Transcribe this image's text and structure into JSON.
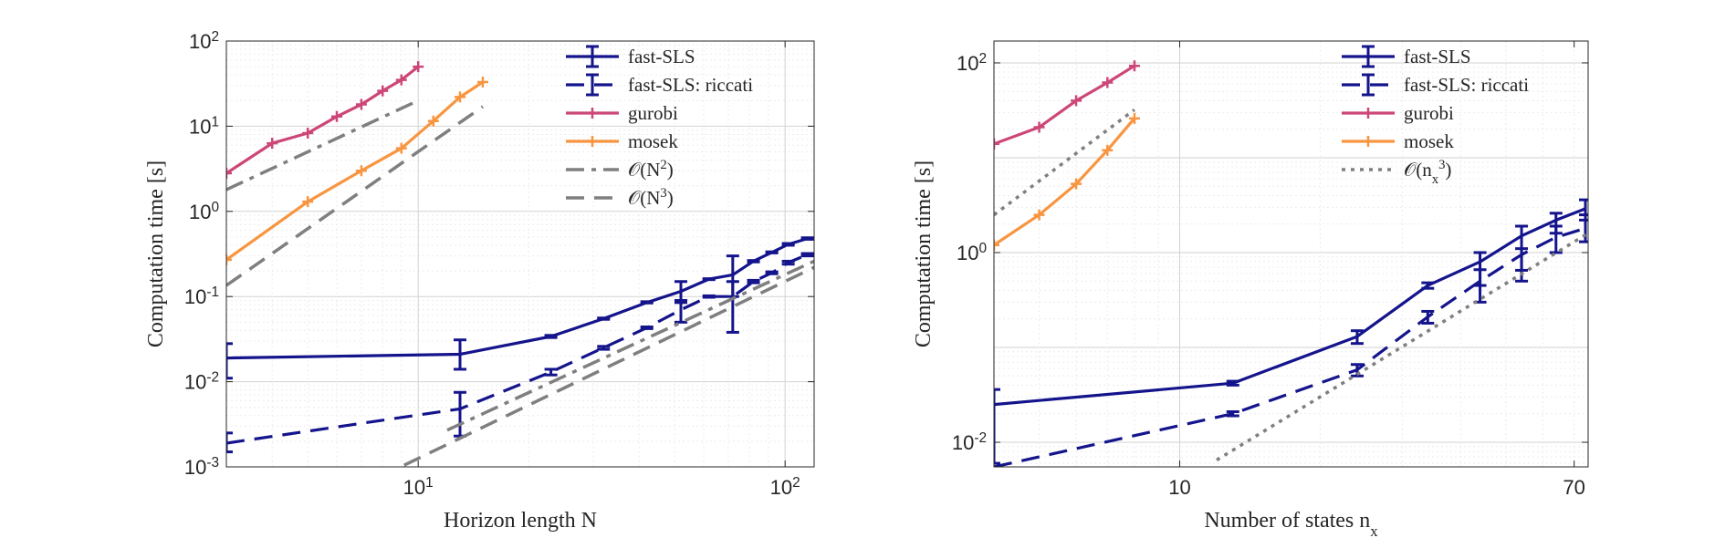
{
  "chart_data": [
    {
      "type": "line",
      "xlabel": "Horizon length N",
      "ylabel": "Computation time [s]",
      "xscale": "log",
      "yscale": "log",
      "xlim": [
        3,
        120
      ],
      "ylim": [
        0.001,
        100
      ],
      "grid": true,
      "legend_position": "top-right",
      "x_ticks": [
        {
          "value": 10,
          "base": "10",
          "exp": "1"
        },
        {
          "value": 100,
          "base": "10",
          "exp": "2"
        }
      ],
      "y_ticks": [
        {
          "value": 0.001,
          "base": "10",
          "exp": "-3"
        },
        {
          "value": 0.01,
          "base": "10",
          "exp": "-2"
        },
        {
          "value": 0.1,
          "base": "10",
          "exp": "-1"
        },
        {
          "value": 1,
          "base": "10",
          "exp": "0"
        },
        {
          "value": 10,
          "base": "10",
          "exp": "1"
        },
        {
          "value": 100,
          "base": "10",
          "exp": "2"
        }
      ],
      "series": [
        {
          "name": "fast-SLS",
          "color": "#14148c",
          "style": "solid",
          "marker": "errorbar",
          "x": [
            3,
            13,
            23,
            32,
            42,
            52,
            62,
            72,
            82,
            92,
            102,
            115
          ],
          "y": [
            0.019,
            0.021,
            0.034,
            0.055,
            0.085,
            0.115,
            0.16,
            0.18,
            0.26,
            0.33,
            0.41,
            0.48
          ],
          "err_low": [
            0.011,
            0.014,
            0.033,
            0.054,
            0.084,
            0.085,
            0.158,
            0.1,
            0.255,
            0.325,
            0.4,
            0.47
          ],
          "err_high": [
            0.028,
            0.031,
            0.035,
            0.056,
            0.087,
            0.15,
            0.162,
            0.3,
            0.265,
            0.335,
            0.42,
            0.49
          ]
        },
        {
          "name": "fast-SLS: riccati",
          "color": "#14148c",
          "style": "dashed",
          "marker": "errorbar",
          "x": [
            3,
            13,
            23,
            32,
            42,
            52,
            62,
            72,
            82,
            92,
            102,
            115
          ],
          "y": [
            0.0019,
            0.0048,
            0.013,
            0.025,
            0.043,
            0.07,
            0.1,
            0.1,
            0.15,
            0.19,
            0.25,
            0.31
          ],
          "err_low": [
            0.0015,
            0.0023,
            0.012,
            0.024,
            0.042,
            0.05,
            0.098,
            0.038,
            0.145,
            0.185,
            0.24,
            0.3
          ],
          "err_high": [
            0.0025,
            0.0075,
            0.014,
            0.026,
            0.044,
            0.09,
            0.102,
            0.15,
            0.155,
            0.195,
            0.26,
            0.32
          ]
        },
        {
          "name": "gurobi",
          "color": "#cc4778",
          "style": "solid",
          "marker": "plus",
          "x": [
            3,
            4,
            5,
            6,
            7,
            8,
            9,
            10
          ],
          "y": [
            2.8,
            6.3,
            8.3,
            13,
            18,
            26,
            35,
            50
          ]
        },
        {
          "name": "mosek",
          "color": "#f89540",
          "style": "solid",
          "marker": "plus",
          "x": [
            3,
            5,
            7,
            9,
            11,
            13,
            15
          ],
          "y": [
            0.27,
            1.3,
            3.0,
            5.5,
            11.5,
            22,
            33
          ]
        },
        {
          "name": "O(N^2)",
          "label_base": "𝒪(N",
          "label_exp": "2",
          "label_close": ")",
          "color": "#7f7f7f",
          "style": "dashdot",
          "marker": "none",
          "x": [
            3,
            10
          ],
          "y": [
            1.8,
            20
          ]
        },
        {
          "name": "O(N^3)",
          "label_base": "𝒪(N",
          "label_exp": "3",
          "label_close": ")",
          "color": "#7f7f7f",
          "style": "dashed",
          "marker": "none",
          "x": [
            3,
            15
          ],
          "y": [
            0.135,
            17
          ]
        },
        {
          "name": "O(N^2) low",
          "legend": false,
          "color": "#7f7f7f",
          "style": "dashdot",
          "marker": "none",
          "x": [
            12,
            120
          ],
          "y": [
            0.0027,
            0.26
          ]
        },
        {
          "name": "O(N^3) low",
          "legend": false,
          "color": "#7f7f7f",
          "style": "dashed",
          "marker": "none",
          "x": [
            7.8,
            120
          ],
          "y": [
            0.00075,
            0.22
          ]
        }
      ]
    },
    {
      "type": "line",
      "xlabel": "Number of states n",
      "xlabel_sub": "x",
      "ylabel": "Computation time [s]",
      "xscale": "log",
      "yscale": "log",
      "xlim": [
        4,
        75
      ],
      "ylim": [
        0.0055,
        170
      ],
      "grid": true,
      "legend_position": "top-right",
      "x_ticks": [
        {
          "value": 10,
          "base": "10",
          "exp": ""
        },
        {
          "value": 70,
          "base": "70",
          "exp": ""
        }
      ],
      "y_ticks": [
        {
          "value": 0.01,
          "base": "10",
          "exp": "-2"
        },
        {
          "value": 1,
          "base": "10",
          "exp": "0"
        },
        {
          "value": 100,
          "base": "10",
          "exp": "2"
        }
      ],
      "series": [
        {
          "name": "fast-SLS",
          "color": "#14148c",
          "style": "solid",
          "marker": "errorbar",
          "x": [
            4,
            13,
            24,
            34,
            44,
            54,
            64,
            74
          ],
          "y": [
            0.025,
            0.042,
            0.13,
            0.45,
            0.8,
            1.5,
            2.2,
            2.9
          ],
          "err_low": [
            0.006,
            0.04,
            0.11,
            0.42,
            0.45,
            0.65,
            1.6,
            2.2
          ],
          "err_high": [
            0.036,
            0.044,
            0.15,
            0.48,
            1.0,
            1.9,
            2.6,
            3.6
          ]
        },
        {
          "name": "fast-SLS: riccati",
          "color": "#14148c",
          "style": "dashed",
          "marker": "errorbar",
          "x": [
            4,
            13,
            24,
            34,
            44,
            54,
            64,
            74
          ],
          "y": [
            0.0055,
            0.02,
            0.058,
            0.21,
            0.5,
            0.95,
            1.45,
            1.8
          ],
          "err_low": [
            0.0055,
            0.019,
            0.05,
            0.18,
            0.3,
            0.5,
            1.0,
            1.3
          ],
          "err_high": [
            0.0055,
            0.021,
            0.066,
            0.24,
            0.66,
            1.1,
            1.9,
            2.5
          ]
        },
        {
          "name": "gurobi",
          "color": "#cc4778",
          "style": "solid",
          "marker": "plus",
          "x": [
            4,
            5,
            6,
            7,
            8
          ],
          "y": [
            14,
            21,
            40,
            62,
            93
          ]
        },
        {
          "name": "mosek",
          "color": "#f89540",
          "style": "solid",
          "marker": "plus",
          "x": [
            4,
            5,
            6,
            7,
            8
          ],
          "y": [
            1.2,
            2.5,
            5.3,
            12,
            26
          ]
        },
        {
          "name": "O(n_x^3)",
          "label_base": "𝒪(n",
          "label_sub": "x",
          "label_exp": "3",
          "label_close": ")",
          "color": "#7f7f7f",
          "style": "dotted",
          "marker": "none",
          "x": [
            4,
            8
          ],
          "y": [
            2.5,
            32
          ]
        },
        {
          "name": "O(n_x^3) low",
          "legend": false,
          "color": "#7f7f7f",
          "style": "dotted",
          "marker": "none",
          "x": [
            12,
            75
          ],
          "y": [
            0.0065,
            1.6
          ]
        }
      ]
    }
  ]
}
